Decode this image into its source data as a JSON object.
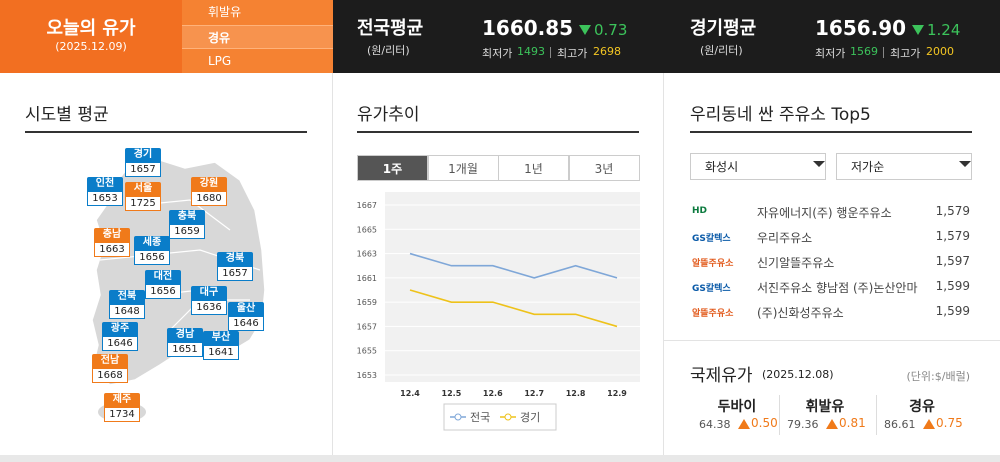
{
  "header": {
    "title": "오늘의 유가",
    "date": "(2025.12.09)",
    "fuel_tabs": [
      {
        "label": "휘발유",
        "selected": false
      },
      {
        "label": "경유",
        "selected": true
      },
      {
        "label": "LPG",
        "selected": false
      }
    ],
    "averages": [
      {
        "label": "전국평균",
        "unit": "(원/리터)",
        "price": "1660.85",
        "change": "0.73",
        "min_label": "최저가",
        "min": "1493",
        "max_label": "최고가",
        "max": "2698"
      },
      {
        "label": "경기평균",
        "unit": "(원/리터)",
        "price": "1656.90",
        "change": "1.24",
        "min_label": "최저가",
        "min": "1569",
        "max_label": "최고가",
        "max": "2000"
      }
    ]
  },
  "regions": {
    "title": "시도별 평균",
    "items": [
      {
        "name": "경기",
        "value": "1657",
        "color": "#0a7dc9"
      },
      {
        "name": "인천",
        "value": "1653",
        "color": "#0a7dc9"
      },
      {
        "name": "서울",
        "value": "1725",
        "color": "#f07a1a"
      },
      {
        "name": "강원",
        "value": "1680",
        "color": "#f07a1a"
      },
      {
        "name": "충북",
        "value": "1659",
        "color": "#0a7dc9"
      },
      {
        "name": "충남",
        "value": "1663",
        "color": "#f07a1a"
      },
      {
        "name": "세종",
        "value": "1656",
        "color": "#0a7dc9"
      },
      {
        "name": "경북",
        "value": "1657",
        "color": "#0a7dc9"
      },
      {
        "name": "대전",
        "value": "1656",
        "color": "#0a7dc9"
      },
      {
        "name": "전북",
        "value": "1648",
        "color": "#0a7dc9"
      },
      {
        "name": "대구",
        "value": "1636",
        "color": "#0a7dc9"
      },
      {
        "name": "울산",
        "value": "1646",
        "color": "#0a7dc9"
      },
      {
        "name": "광주",
        "value": "1646",
        "color": "#0a7dc9"
      },
      {
        "name": "경남",
        "value": "1651",
        "color": "#0a7dc9"
      },
      {
        "name": "부산",
        "value": "1641",
        "color": "#0a7dc9"
      },
      {
        "name": "전남",
        "value": "1668",
        "color": "#f07a1a"
      },
      {
        "name": "제주",
        "value": "1734",
        "color": "#f07a1a"
      }
    ]
  },
  "trend": {
    "title": "유가추이",
    "periods": [
      {
        "label": "1주",
        "selected": true
      },
      {
        "label": "1개월",
        "selected": false
      },
      {
        "label": "1년",
        "selected": false
      },
      {
        "label": "3년",
        "selected": false
      }
    ]
  },
  "chart_data": {
    "type": "line",
    "categories": [
      "12.4",
      "12.5",
      "12.6",
      "12.7",
      "12.8",
      "12.9"
    ],
    "series": [
      {
        "name": "전국",
        "color": "#7fa7d8",
        "values": [
          1663,
          1662,
          1662,
          1661,
          1662,
          1661
        ]
      },
      {
        "name": "경기",
        "color": "#eec21a",
        "values": [
          1660,
          1659,
          1659,
          1658,
          1658,
          1657
        ]
      }
    ],
    "ylim": [
      1653,
      1667
    ],
    "yticks": [
      1653,
      1655,
      1657,
      1659,
      1661,
      1663,
      1665,
      1667
    ],
    "grid": true
  },
  "top5": {
    "title": "우리동네 싼 주유소 Top5",
    "selects": [
      "화성시",
      "저가순"
    ],
    "stations": [
      {
        "brand": "HD",
        "name": "자유에너지(주) 행운주유소",
        "price": "1,579"
      },
      {
        "brand": "GS칼텍스",
        "name": "우리주유소",
        "price": "1,579"
      },
      {
        "brand": "알뜰주유소",
        "name": "신기알뜰주유소",
        "price": "1,597"
      },
      {
        "brand": "GS칼텍스",
        "name": "서진주유소 향남점 (주)논산안마",
        "price": "1,599"
      },
      {
        "brand": "알뜰주유소",
        "name": "(주)신화성주유소",
        "price": "1,599"
      }
    ]
  },
  "international": {
    "title": "국제유가",
    "date": "(2025.12.08)",
    "unit": "(단위:$/배럴)",
    "items": [
      {
        "name": "두바이",
        "price": "64.38",
        "change": "0.50"
      },
      {
        "name": "휘발유",
        "price": "79.36",
        "change": "0.81"
      },
      {
        "name": "경유",
        "price": "86.61",
        "change": "0.75"
      }
    ]
  }
}
